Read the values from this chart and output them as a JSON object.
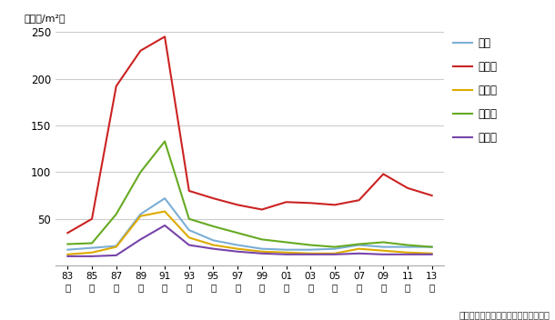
{
  "years_x": [
    0,
    1,
    2,
    3,
    4,
    5,
    6,
    7,
    8,
    9,
    10,
    11,
    12,
    13,
    14,
    15
  ],
  "year_labels": [
    "83\n年",
    "85\n年",
    "87\n年",
    "89\n年",
    "91\n年",
    "93\n年",
    "95\n年",
    "97\n年",
    "99\n年",
    "01\n年",
    "03\n年",
    "05\n年",
    "07\n年",
    "09\n年",
    "11\n年",
    "13\n年"
  ],
  "series": [
    {
      "name": "全国",
      "color": "#7aaed6",
      "values": [
        17,
        19,
        21,
        55,
        72,
        38,
        27,
        22,
        18,
        17,
        17,
        18,
        22,
        20,
        20,
        20
      ]
    },
    {
      "name": "東京都",
      "color": "#cc2222",
      "values": [
        35,
        50,
        192,
        230,
        245,
        80,
        72,
        65,
        60,
        68,
        67,
        65,
        70,
        98,
        83,
        75
      ]
    },
    {
      "name": "愛知県",
      "color": "#ddaa00",
      "values": [
        12,
        14,
        20,
        53,
        58,
        30,
        22,
        18,
        15,
        14,
        13,
        13,
        18,
        16,
        14,
        13
      ]
    },
    {
      "name": "大阪府",
      "color": "#66aa22",
      "values": [
        23,
        24,
        55,
        100,
        133,
        50,
        42,
        35,
        28,
        25,
        22,
        20,
        23,
        25,
        22,
        20
      ]
    },
    {
      "name": "福岡県",
      "color": "#7744aa",
      "values": [
        10,
        10,
        11,
        28,
        43,
        22,
        18,
        15,
        13,
        12,
        12,
        12,
        13,
        12,
        12,
        12
      ]
    }
  ],
  "ylabel": "（万円/m²）",
  "ylim": [
    0,
    250
  ],
  "yticks": [
    0,
    50,
    100,
    150,
    200,
    250
  ],
  "caption": "（国土交通省「地価公示」より作成）",
  "bg_color": "#ffffff",
  "grid_color": "#cccccc"
}
